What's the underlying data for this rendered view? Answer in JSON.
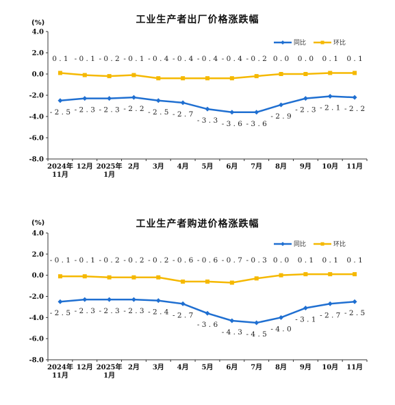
{
  "chart_data": [
    {
      "type": "line",
      "title": "工业生产者出厂价格涨跌幅",
      "unit": "(%)",
      "categories": [
        "2024年\n11月",
        "12月",
        "2025年\n1月",
        "2月",
        "3月",
        "4月",
        "5月",
        "6月",
        "7月",
        "8月",
        "9月",
        "10月",
        "11月"
      ],
      "series": [
        {
          "name": "同比",
          "color": "#1f6fd1",
          "values": [
            -2.5,
            -2.3,
            -2.3,
            -2.2,
            -2.5,
            -2.7,
            -3.3,
            -3.6,
            -3.6,
            -2.9,
            -2.3,
            -2.1,
            -2.2
          ]
        },
        {
          "name": "环比",
          "color": "#f5b800",
          "values": [
            0.1,
            -0.1,
            -0.2,
            -0.1,
            -0.4,
            -0.4,
            -0.4,
            -0.4,
            -0.2,
            0.0,
            0.0,
            0.1,
            0.1
          ]
        }
      ],
      "ylim": [
        -8.0,
        4.0
      ],
      "yticks": [
        "4.0",
        "2.0",
        "0.0",
        "-2.0",
        "-4.0",
        "-6.0",
        "-8.0"
      ],
      "legend_position": "top-right",
      "grid": false
    },
    {
      "type": "line",
      "title": "工业生产者购进价格涨跌幅",
      "unit": "(%)",
      "categories": [
        "2024年\n11月",
        "12月",
        "2025年\n1月",
        "2月",
        "3月",
        "4月",
        "5月",
        "6月",
        "7月",
        "8月",
        "9月",
        "10月",
        "11月"
      ],
      "series": [
        {
          "name": "同比",
          "color": "#1f6fd1",
          "values": [
            -2.5,
            -2.3,
            -2.3,
            -2.3,
            -2.4,
            -2.7,
            -3.6,
            -4.3,
            -4.5,
            -4.0,
            -3.1,
            -2.7,
            -2.5
          ]
        },
        {
          "name": "环比",
          "color": "#f5b800",
          "values": [
            -0.1,
            -0.1,
            -0.2,
            -0.2,
            -0.2,
            -0.6,
            -0.6,
            -0.7,
            -0.3,
            0.0,
            0.1,
            0.1,
            0.1
          ]
        }
      ],
      "ylim": [
        -8.0,
        4.0
      ],
      "yticks": [
        "4.0",
        "2.0",
        "0.0",
        "-2.0",
        "-4.0",
        "-6.0",
        "-8.0"
      ],
      "legend_position": "top-right",
      "grid": false
    }
  ]
}
